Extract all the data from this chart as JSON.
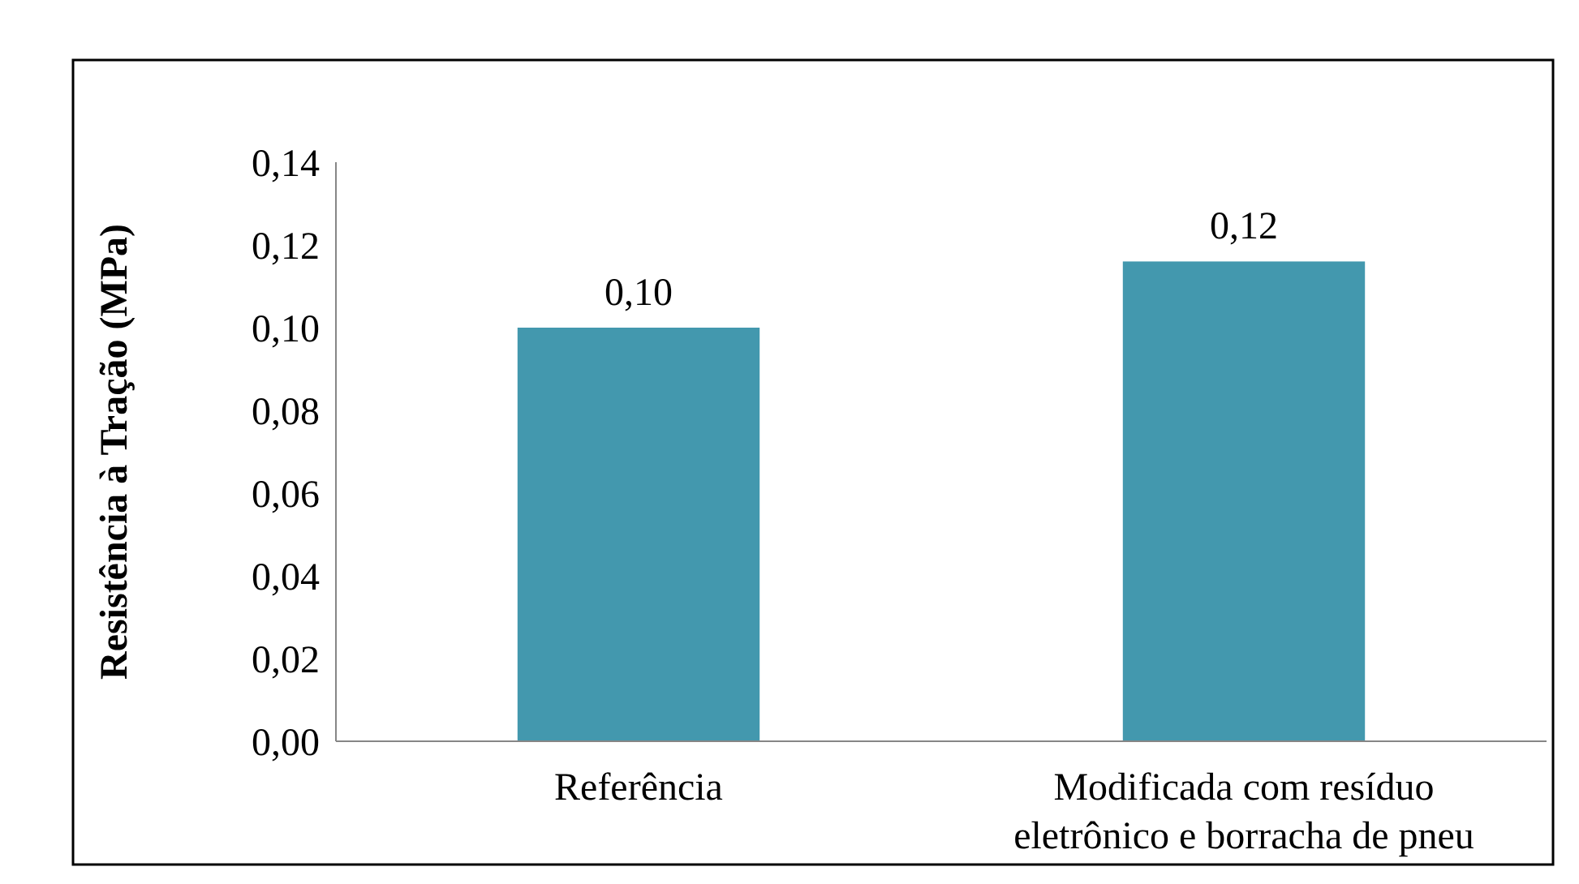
{
  "chart_data": {
    "type": "bar",
    "ylabel": "Resistência à Tração (MPa)",
    "categories": [
      "Referência",
      "Modificada com resíduo eletrônico e borracha de pneu"
    ],
    "values": [
      0.1,
      0.116
    ],
    "color": "#4398ae",
    "value_labels": [
      "0,10",
      "0,12"
    ],
    "ylim": [
      0,
      0.14
    ],
    "yticks": [
      {
        "value": 0,
        "label": "0,00"
      },
      {
        "value": 0.02,
        "label": "0,02"
      },
      {
        "value": 0.04,
        "label": "0,04"
      },
      {
        "value": 0.06,
        "label": "0,06"
      },
      {
        "value": 0.08,
        "label": "0,08"
      },
      {
        "value": 0.1,
        "label": "0,10"
      },
      {
        "value": 0.12,
        "label": "0,12"
      },
      {
        "value": 0.14,
        "label": "0,14"
      }
    ],
    "grid": false
  }
}
